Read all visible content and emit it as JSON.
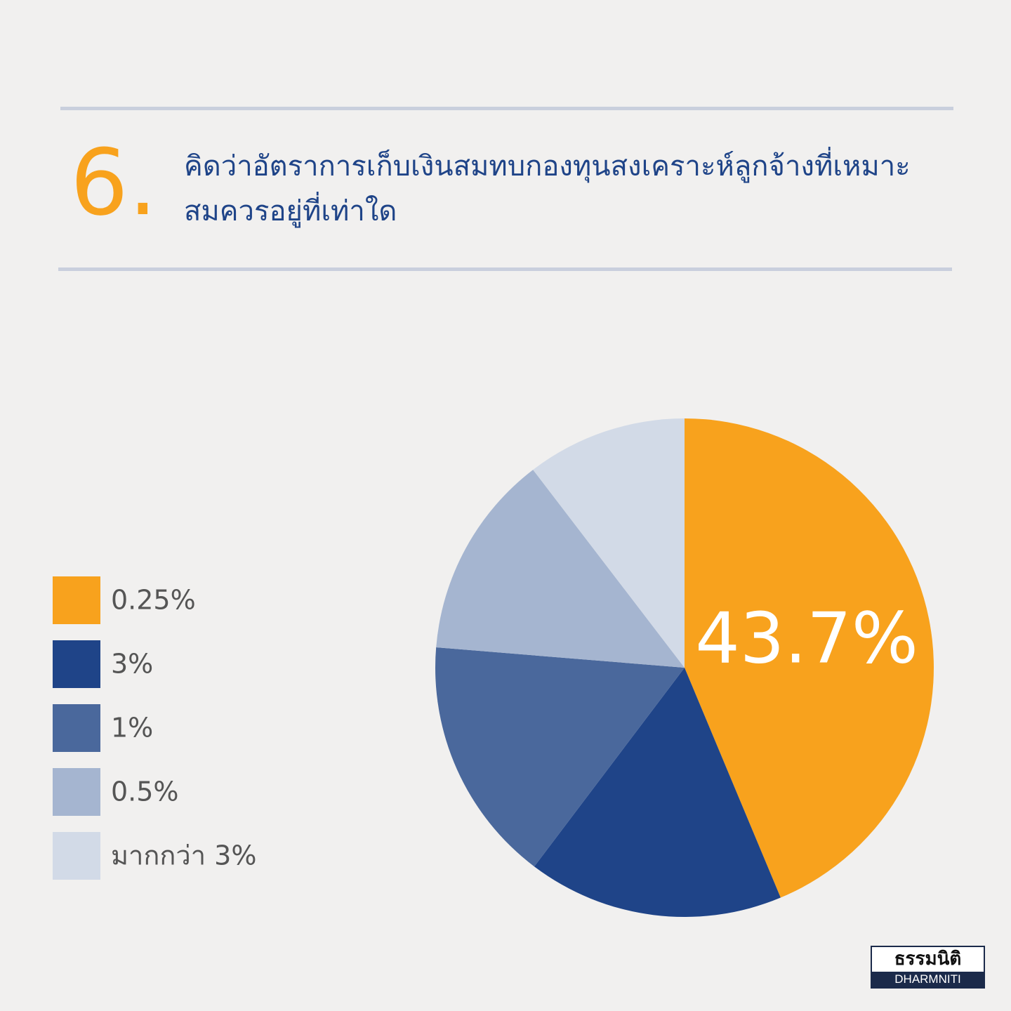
{
  "number": "6.",
  "logo": {
    "thai": "ธรรมนิติ",
    "latin": "DHARMNITI"
  },
  "chart_data": {
    "type": "pie",
    "title": "คิดว่าอัตราการเก็บเงินสมทบกองทุนสงเคราะห์ลูกจ้างที่เหมาะสมควรอยู่ที่เท่าใด",
    "categories": [
      "0.25%",
      "3%",
      "1%",
      "0.5%",
      "มากกว่า 3%"
    ],
    "values": [
      43.7,
      16.6,
      16.0,
      13.3,
      10.4
    ],
    "value_labels": [
      "43.7%",
      null,
      null,
      null,
      null
    ],
    "colors": [
      "#f8a21d",
      "#1f4488",
      "#4a689c",
      "#a5b5d0",
      "#d2dae7"
    ],
    "legend": "left"
  }
}
